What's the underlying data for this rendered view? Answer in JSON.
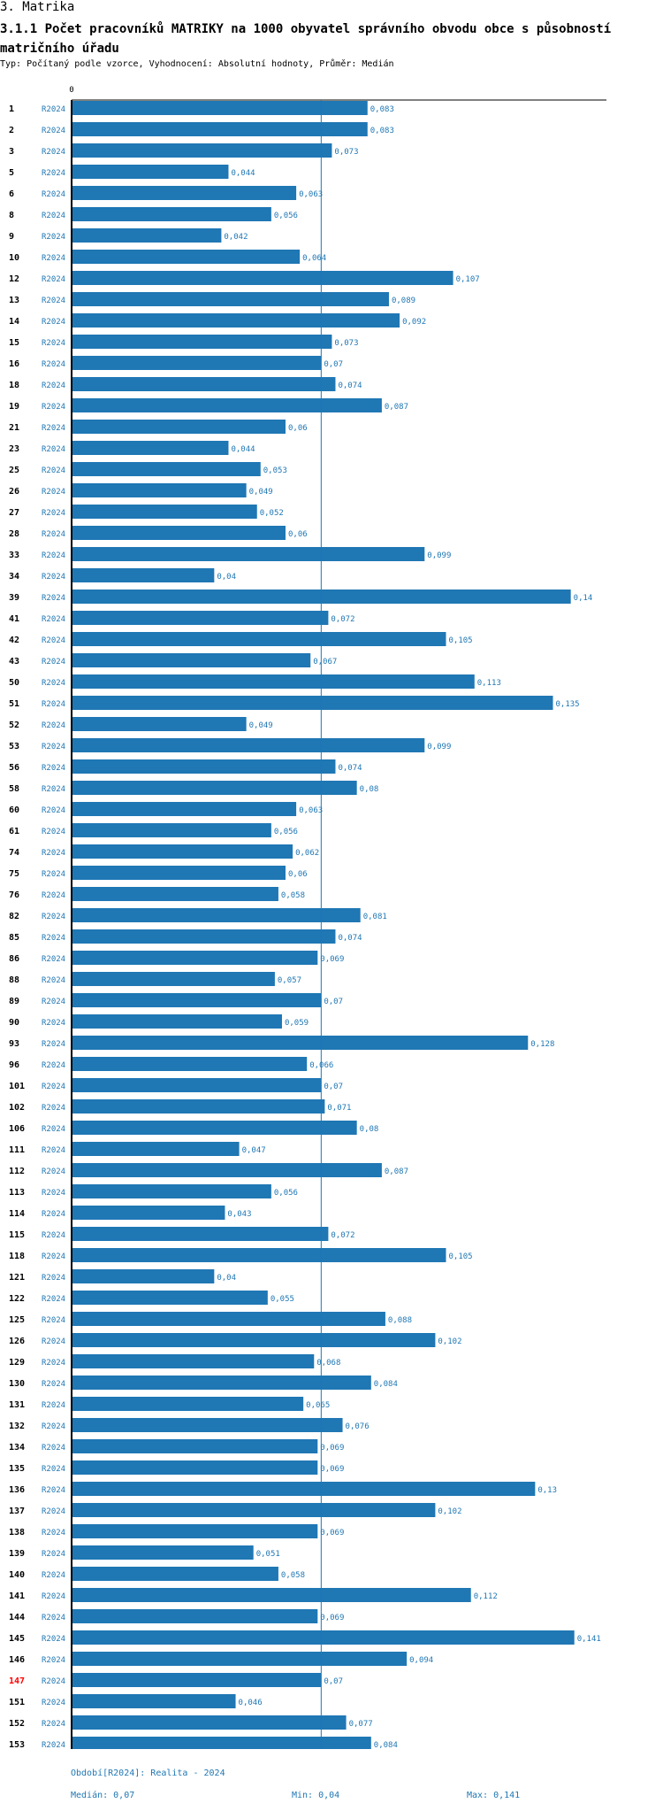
{
  "section_title": "3. Matrika",
  "chart_title": "3.1.1 Počet pracovníků MATRIKY na 1000 obyvatel správního obvodu obce s působností matričního úřadu",
  "subtitle": "Typ: Počítaný podle vzorce, Vyhodnocení: Absolutní hodnoty, Průměr: Medián",
  "colors": {
    "bar": "#1f77b4",
    "label": "#1f77b4",
    "highlight": "#ff0000",
    "axis": "#000000"
  },
  "chart_data": {
    "type": "bar",
    "orientation": "horizontal",
    "x_tick_label": "0",
    "xlim": [
      0,
      0.15
    ],
    "series_label": "R2024",
    "highlight_category": "147",
    "reference_line": 0.07,
    "categories": [
      "1",
      "2",
      "3",
      "5",
      "6",
      "8",
      "9",
      "10",
      "12",
      "13",
      "14",
      "15",
      "16",
      "18",
      "19",
      "21",
      "23",
      "25",
      "26",
      "27",
      "28",
      "33",
      "34",
      "39",
      "41",
      "42",
      "43",
      "50",
      "51",
      "52",
      "53",
      "56",
      "58",
      "60",
      "61",
      "74",
      "75",
      "76",
      "82",
      "85",
      "86",
      "88",
      "89",
      "90",
      "93",
      "96",
      "101",
      "102",
      "106",
      "111",
      "112",
      "113",
      "114",
      "115",
      "118",
      "121",
      "122",
      "125",
      "126",
      "129",
      "130",
      "131",
      "132",
      "134",
      "135",
      "136",
      "137",
      "138",
      "139",
      "140",
      "141",
      "144",
      "145",
      "146",
      "147",
      "151",
      "152",
      "153"
    ],
    "values": [
      0.083,
      0.083,
      0.073,
      0.044,
      0.063,
      0.056,
      0.042,
      0.064,
      0.107,
      0.089,
      0.092,
      0.073,
      0.07,
      0.074,
      0.087,
      0.06,
      0.044,
      0.053,
      0.049,
      0.052,
      0.06,
      0.099,
      0.04,
      0.14,
      0.072,
      0.105,
      0.067,
      0.113,
      0.135,
      0.049,
      0.099,
      0.074,
      0.08,
      0.063,
      0.056,
      0.062,
      0.06,
      0.058,
      0.081,
      0.074,
      0.069,
      0.057,
      0.07,
      0.059,
      0.128,
      0.066,
      0.07,
      0.071,
      0.08,
      0.047,
      0.087,
      0.056,
      0.043,
      0.072,
      0.105,
      0.04,
      0.055,
      0.088,
      0.102,
      0.068,
      0.084,
      0.065,
      0.076,
      0.069,
      0.069,
      0.13,
      0.102,
      0.069,
      0.051,
      0.058,
      0.112,
      0.069,
      0.141,
      0.094,
      0.07,
      0.046,
      0.077,
      0.084
    ],
    "value_labels": [
      "0,083",
      "0,083",
      "0,073",
      "0,044",
      "0,063",
      "0,056",
      "0,042",
      "0,064",
      "0,107",
      "0,089",
      "0,092",
      "0,073",
      "0,07",
      "0,074",
      "0,087",
      "0,06",
      "0,044",
      "0,053",
      "0,049",
      "0,052",
      "0,06",
      "0,099",
      "0,04",
      "0,14",
      "0,072",
      "0,105",
      "0,067",
      "0,113",
      "0,135",
      "0,049",
      "0,099",
      "0,074",
      "0,08",
      "0,063",
      "0,056",
      "0,062",
      "0,06",
      "0,058",
      "0,081",
      "0,074",
      "0,069",
      "0,057",
      "0,07",
      "0,059",
      "0,128",
      "0,066",
      "0,07",
      "0,071",
      "0,08",
      "0,047",
      "0,087",
      "0,056",
      "0,043",
      "0,072",
      "0,105",
      "0,04",
      "0,055",
      "0,088",
      "0,102",
      "0,068",
      "0,084",
      "0,065",
      "0,076",
      "0,069",
      "0,069",
      "0,13",
      "0,102",
      "0,069",
      "0,051",
      "0,058",
      "0,112",
      "0,069",
      "0,141",
      "0,094",
      "0,07",
      "0,046",
      "0,077",
      "0,084"
    ]
  },
  "footer": {
    "period": "Období[R2024]: Realita - 2024",
    "median": "Medián: 0,07",
    "min": "Min: 0,04",
    "max": "Max: 0,141"
  }
}
